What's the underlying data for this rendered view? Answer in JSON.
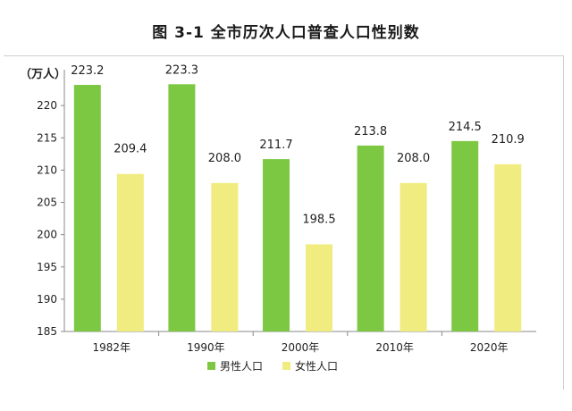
{
  "chart_data": {
    "type": "bar",
    "title": "图 3-1    全市历次人口普查人口性别数",
    "ylabel": "（万人）",
    "xlabel": "",
    "categories": [
      "1982年",
      "1990年",
      "2000年",
      "2010年",
      "2020年"
    ],
    "series": [
      {
        "name": "男性人口",
        "color": "#7dc843",
        "values": [
          223.2,
          223.3,
          211.7,
          213.8,
          214.5
        ],
        "labels": [
          "223.2",
          "223.3",
          "211.7",
          "213.8",
          "214.5"
        ]
      },
      {
        "name": "女性人口",
        "color": "#f0ec7f",
        "values": [
          209.4,
          208.0,
          198.5,
          208.0,
          210.9
        ],
        "labels": [
          "209.4",
          "208.0",
          "198.5",
          "208.0",
          "210.9"
        ]
      }
    ],
    "ylim": [
      185,
      225
    ],
    "yticks": [
      185,
      190,
      195,
      200,
      205,
      210,
      215,
      220
    ],
    "grid": false,
    "legend_position": "bottom"
  }
}
